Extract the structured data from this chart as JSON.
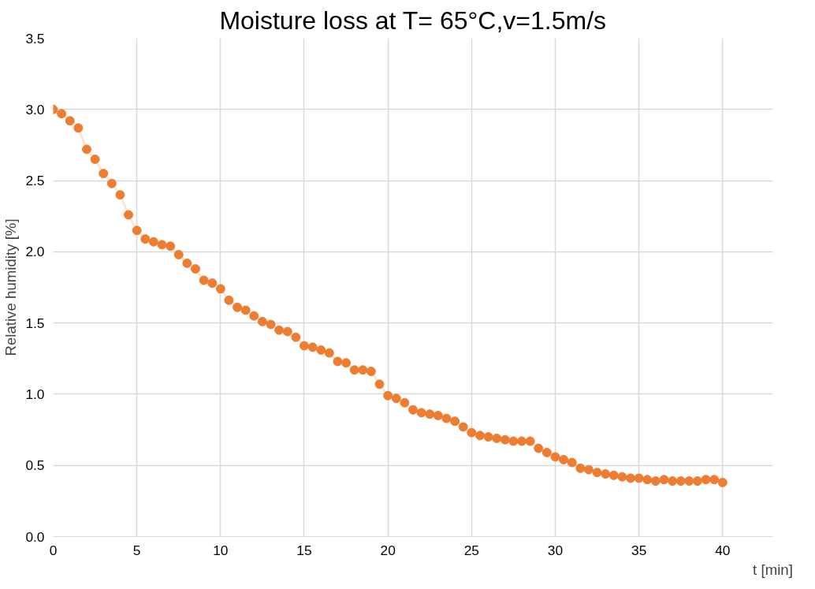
{
  "chart_data": {
    "type": "line",
    "title": "Moisture loss at T= 65°C,v=1.5m/s",
    "xlabel": "t [min]",
    "ylabel": "Relative humidity [%]",
    "x": [
      0,
      0.5,
      1,
      1.5,
      2,
      2.5,
      3,
      3.5,
      4,
      4.5,
      5,
      5.5,
      6,
      6.5,
      7,
      7.5,
      8,
      8.5,
      9,
      9.5,
      10,
      10.5,
      11,
      11.5,
      12,
      12.5,
      13,
      13.5,
      14,
      14.5,
      15,
      15.5,
      16,
      16.5,
      17,
      17.5,
      18,
      18.5,
      19,
      19.5,
      20,
      20.5,
      21,
      21.5,
      22,
      22.5,
      23,
      23.5,
      24,
      24.5,
      25,
      25.5,
      26,
      26.5,
      27,
      27.5,
      28,
      28.5,
      29,
      29.5,
      30,
      30.5,
      31,
      31.5,
      32,
      32.5,
      33,
      33.5,
      34,
      34.5,
      35,
      35.5,
      36,
      36.5,
      37,
      37.5,
      38,
      38.5,
      39,
      39.5,
      40
    ],
    "series": [
      {
        "color": "#ed7d31",
        "values": [
          3.0,
          2.97,
          2.92,
          2.87,
          2.72,
          2.65,
          2.55,
          2.48,
          2.4,
          2.26,
          2.15,
          2.09,
          2.07,
          2.05,
          2.04,
          1.98,
          1.92,
          1.88,
          1.8,
          1.78,
          1.74,
          1.66,
          1.61,
          1.59,
          1.55,
          1.51,
          1.49,
          1.45,
          1.44,
          1.4,
          1.34,
          1.33,
          1.31,
          1.29,
          1.23,
          1.22,
          1.17,
          1.17,
          1.16,
          1.07,
          0.99,
          0.97,
          0.94,
          0.89,
          0.87,
          0.86,
          0.85,
          0.83,
          0.81,
          0.77,
          0.73,
          0.71,
          0.7,
          0.69,
          0.68,
          0.67,
          0.67,
          0.67,
          0.62,
          0.59,
          0.56,
          0.54,
          0.52,
          0.48,
          0.47,
          0.45,
          0.44,
          0.43,
          0.42,
          0.41,
          0.41,
          0.4,
          0.39,
          0.4,
          0.39,
          0.39,
          0.39,
          0.39,
          0.4,
          0.4,
          0.38
        ]
      }
    ],
    "xlim": [
      0,
      43
    ],
    "ylim": [
      0,
      3.5
    ],
    "xticks": [
      0,
      5,
      10,
      15,
      20,
      25,
      30,
      35,
      40
    ],
    "yticks": [
      {
        "value": 0,
        "label": "0.0"
      },
      {
        "value": 0.5,
        "label": "0.5"
      },
      {
        "value": 1,
        "label": "1.0"
      },
      {
        "value": 1.5,
        "label": "1.5"
      },
      {
        "value": 2,
        "label": "2.0"
      },
      {
        "value": 2.5,
        "label": "2.5"
      },
      {
        "value": 3,
        "label": "3.0"
      },
      {
        "value": 3.5,
        "label": "3.5"
      }
    ],
    "grid": true,
    "marker": "circle",
    "line_style": "solid"
  }
}
